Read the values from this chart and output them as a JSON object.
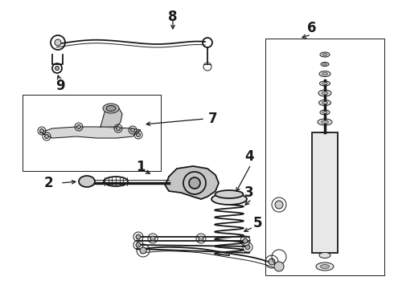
{
  "bg_color": "#ffffff",
  "line_color": "#1a1a1a",
  "label_color": "#000000",
  "fig_width": 4.9,
  "fig_height": 3.6,
  "dpi": 100,
  "lw_main": 1.3,
  "lw_thin": 0.7,
  "lw_thick": 2.0,
  "label_fontsize": 10,
  "label_fontsize_lg": 12
}
